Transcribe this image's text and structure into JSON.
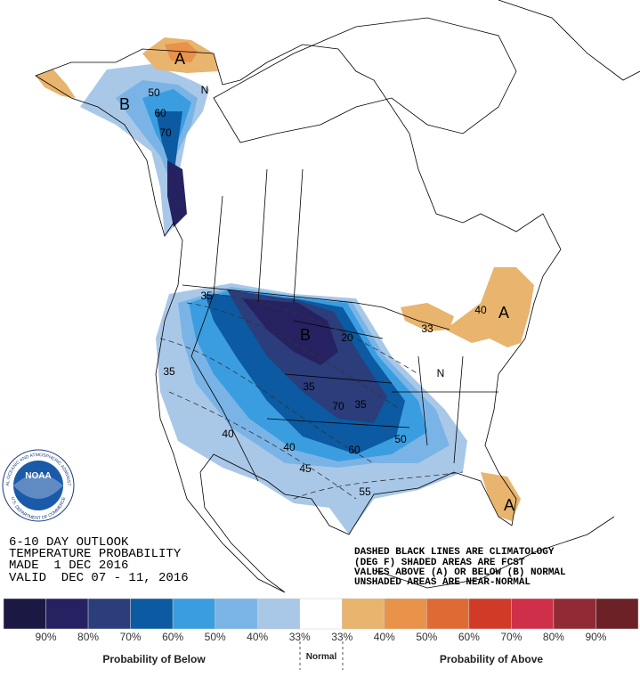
{
  "header": {
    "lines": [
      "6-10 DAY OUTLOOK",
      "TEMPERATURE PROBABILITY",
      "MADE  1 DEC 2016",
      "VALID  DEC 07 - 11, 2016"
    ]
  },
  "notes": [
    "DASHED BLACK LINES ARE CLIMATOLOGY",
    "(DEG F) SHADED AREAS ARE FCST",
    "VALUES ABOVE (A) OR BELOW (B) NORMAL",
    "UNSHADED AREAS ARE NEAR-NORMAL"
  ],
  "logo": {
    "name": "NOAA",
    "ring_top": "NATIONAL OCEANIC AND ATMOSPHERIC ADMINISTRATION",
    "ring_bottom": "U.S. DEPARTMENT OF COMMERCE"
  },
  "map": {
    "labels": [
      "A",
      "B",
      "50",
      "60",
      "70",
      "N",
      "35",
      "B",
      "20",
      "35",
      "70",
      "35",
      "40",
      "40",
      "45",
      "60",
      "50",
      "55",
      "35",
      "A",
      "40",
      "33",
      "A",
      "N"
    ]
  },
  "legend": {
    "colors": [
      "#1c1844",
      "#262262",
      "#2b3d7a",
      "#0b5aa2",
      "#3a9de0",
      "#7ab4e6",
      "#a9c8e8",
      "#ffffff",
      "#e8b46e",
      "#e8924a",
      "#e06a34",
      "#d23a28",
      "#cf2f48",
      "#922a35",
      "#6b2125"
    ],
    "labels": [
      "90%",
      "80%",
      "70%",
      "60%",
      "50%",
      "40%",
      "33%",
      "33%",
      "40%",
      "50%",
      "60%",
      "70%",
      "80%",
      "90%"
    ],
    "below": "Probability of Below",
    "normal": "Normal",
    "above": "Probability of Above"
  }
}
